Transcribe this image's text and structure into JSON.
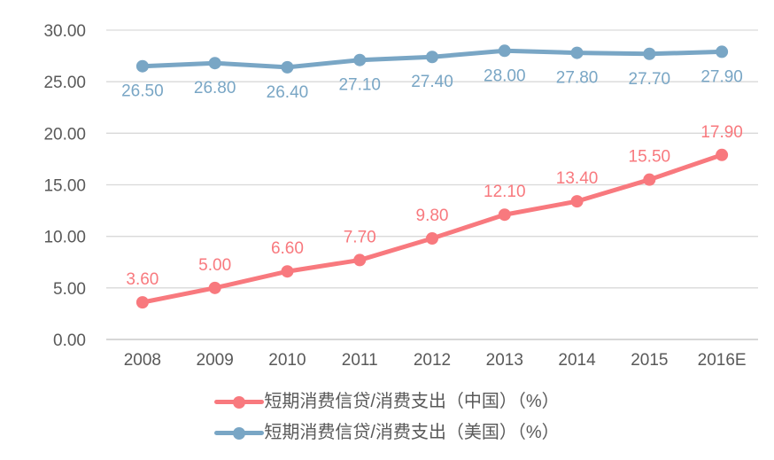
{
  "chart_data": {
    "type": "line",
    "categories": [
      "2008",
      "2009",
      "2010",
      "2011",
      "2012",
      "2013",
      "2014",
      "2015",
      "2016E"
    ],
    "series": [
      {
        "name": "短期消费信贷/消费支出（中国）（%）",
        "values": [
          3.6,
          5.0,
          6.6,
          7.7,
          9.8,
          12.1,
          13.4,
          15.5,
          17.9
        ],
        "labels": [
          "3.60",
          "5.00",
          "6.60",
          "7.70",
          "9.80",
          "12.10",
          "13.40",
          "15.50",
          "17.90"
        ],
        "color": "#F8797E",
        "label_position": "above"
      },
      {
        "name": "短期消费信贷/消费支出（美国）（%）",
        "values": [
          26.5,
          26.8,
          26.4,
          27.1,
          27.4,
          28.0,
          27.8,
          27.7,
          27.9
        ],
        "labels": [
          "26.50",
          "26.80",
          "26.40",
          "27.10",
          "27.40",
          "28.00",
          "27.80",
          "27.70",
          "27.90"
        ],
        "color": "#79A6C5",
        "label_position": "below"
      }
    ],
    "y_ticks": [
      "0.00",
      "5.00",
      "10.00",
      "15.00",
      "20.00",
      "25.00",
      "30.00"
    ],
    "ylim": [
      0,
      30
    ],
    "xlabel": "",
    "ylabel": "",
    "title": "",
    "grid": true,
    "legend_position": "bottom",
    "colors": {
      "axis_text": "#595959",
      "gridline": "#D9D9D9",
      "axis_line": "#BFBFBF",
      "background": "#FFFFFF"
    }
  }
}
